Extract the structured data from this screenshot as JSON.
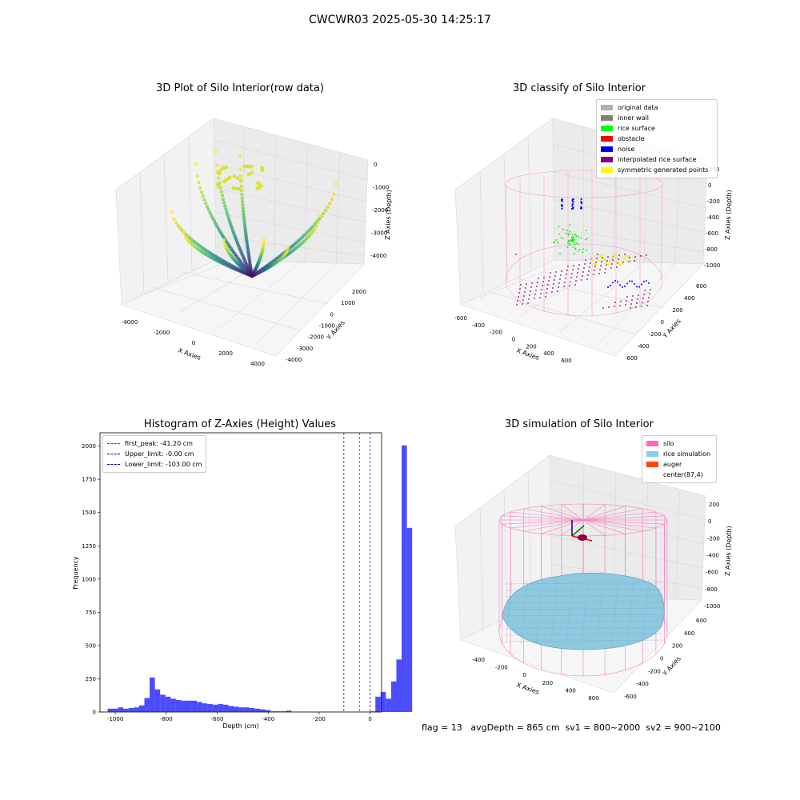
{
  "figure": {
    "suptitle": "CWCWR03 2025-05-30 14:25:17"
  },
  "panels": {
    "raw": {
      "title": "3D Plot of Silo Interior(row data)",
      "xlabel": "X Axies",
      "ylabel": "Y Axies",
      "zlabel": "Z Axies (Depth)",
      "xticks": [
        "-4000",
        "-2000",
        "0",
        "2000",
        "4000"
      ],
      "yticks": [
        "-4000",
        "-3000",
        "-2000",
        "-1000",
        "0",
        "1000",
        "2000"
      ],
      "zticks": [
        "0",
        "-1000",
        "-2000",
        "-3000",
        "-4000"
      ]
    },
    "classify": {
      "title": "3D classify of Silo Interior",
      "xlabel": "X Axies",
      "ylabel": "Y Axies",
      "zlabel": "Z Axies (Depth)",
      "xticks": [
        "-600",
        "-400",
        "-200",
        "0",
        "200",
        "400",
        "600"
      ],
      "yticks": [
        "-600",
        "-400",
        "-200",
        "0",
        "200",
        "400",
        "600"
      ],
      "zticks": [
        "200",
        "0",
        "-200",
        "-400",
        "-600",
        "-800",
        "-1000"
      ],
      "legend": [
        {
          "label": "original data",
          "color": "#b0b0b0"
        },
        {
          "label": "inner wall",
          "color": "#808080"
        },
        {
          "label": "rice surface",
          "color": "#00ff00"
        },
        {
          "label": "obstacle",
          "color": "#ff0000"
        },
        {
          "label": "noise",
          "color": "#0000ee"
        },
        {
          "label": "interpolated rice surface",
          "color": "#800080"
        },
        {
          "label": "symmetric generated points",
          "color": "#ffff00"
        }
      ]
    },
    "simulation": {
      "title": "3D simulation of Silo Interior",
      "xlabel": "X Axies",
      "ylabel": "Y Axies",
      "zlabel": "Z Axies (Depth)",
      "xticks": [
        "-400",
        "-200",
        "0",
        "200",
        "400",
        "600"
      ],
      "yticks": [
        "-600",
        "-400",
        "-200",
        "0",
        "200",
        "400",
        "600"
      ],
      "zticks": [
        "200",
        "0",
        "-200",
        "-400",
        "-600",
        "-800",
        "-1000"
      ],
      "legend": [
        {
          "label": "silo",
          "color": "#ff69b4"
        },
        {
          "label": "rice simulation",
          "color": "#87ceeb"
        },
        {
          "label": "auger",
          "color": "#ff4500"
        },
        {
          "label": "center(87,4)",
          "color": ""
        }
      ]
    }
  },
  "chart_data": {
    "type": "bar",
    "title": "Histogram of Z-Axies (Height) Values",
    "xlabel": "Depth (cm)",
    "ylabel": "Frequency",
    "xlim": [
      -1060,
      45
    ],
    "ylim": [
      0,
      2100
    ],
    "xticks": [
      -1000,
      -800,
      -600,
      -400,
      -200,
      0
    ],
    "yticks": [
      0,
      250,
      500,
      750,
      1000,
      1250,
      1500,
      1750,
      2000
    ],
    "bin_width": 20.6,
    "bin_start": -1030,
    "values": [
      25,
      25,
      35,
      25,
      30,
      35,
      50,
      105,
      260,
      170,
      130,
      115,
      100,
      90,
      85,
      85,
      85,
      75,
      65,
      60,
      55,
      60,
      55,
      45,
      40,
      35,
      35,
      30,
      25,
      20,
      15,
      5,
      5,
      5,
      10,
      2,
      1,
      1,
      1,
      1,
      1,
      1,
      1,
      1,
      1,
      1,
      1,
      1,
      1,
      1,
      5,
      115,
      150,
      100,
      230,
      395,
      2005,
      1385
    ],
    "bar_color": "#0000ff",
    "vlines": [
      {
        "label": "first_peak: -41.20 cm",
        "x": -41.2,
        "color": "#ff0000"
      },
      {
        "label": "Upper_limit: -0.00 cm",
        "x": 0,
        "color": "#0000aa"
      },
      {
        "label": "Lower_limit: -103.00 cm",
        "x": -103,
        "color": "#0000aa"
      }
    ],
    "legend_position": "upper-left"
  },
  "footer": {
    "flag": "flag = 13",
    "avg": "avgDepth = 865 cm",
    "sv1": "sv1 = 800~2000",
    "sv2": "sv2 = 900~2100"
  }
}
